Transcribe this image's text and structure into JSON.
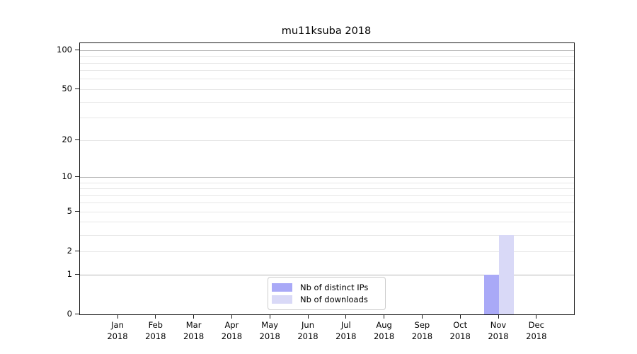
{
  "title": "mu11ksuba 2018",
  "colors": {
    "distinct_ips": "#a9a9f7",
    "downloads": "#d9d9f7",
    "grid_major": "#b4b4b4",
    "grid_minor": "#e7e7e7",
    "spine": "#1a1a1a"
  },
  "legend": {
    "items": [
      {
        "label": "Nb of distinct IPs",
        "color_key": "distinct_ips"
      },
      {
        "label": "Nb of downloads",
        "color_key": "downloads"
      }
    ]
  },
  "chart_data": {
    "type": "bar",
    "title": "mu11ksuba 2018",
    "categories": [
      "Jan 2018",
      "Feb 2018",
      "Mar 2018",
      "Apr 2018",
      "May 2018",
      "Jun 2018",
      "Jul 2018",
      "Aug 2018",
      "Sep 2018",
      "Oct 2018",
      "Nov 2018",
      "Dec 2018"
    ],
    "series": [
      {
        "name": "Nb of distinct IPs",
        "color_key": "distinct_ips",
        "values": [
          0,
          0,
          0,
          0,
          0,
          0,
          0,
          0,
          0,
          0,
          1,
          0
        ]
      },
      {
        "name": "Nb of downloads",
        "color_key": "downloads",
        "values": [
          0,
          0,
          0,
          0,
          0,
          0,
          0,
          0,
          0,
          0,
          3,
          0
        ]
      }
    ],
    "yscale": "log10(1+v)",
    "ylim": [
      0,
      113
    ],
    "y_ticks": [
      0,
      1,
      2,
      5,
      10,
      20,
      50,
      100
    ],
    "y_major_gridlines": [
      1,
      10,
      100
    ],
    "y_minor_gridlines": [
      2,
      3,
      4,
      5,
      6,
      7,
      8,
      9,
      20,
      30,
      40,
      50,
      60,
      70,
      80,
      90
    ],
    "grid": "on",
    "legend_position": "bottom-center"
  }
}
